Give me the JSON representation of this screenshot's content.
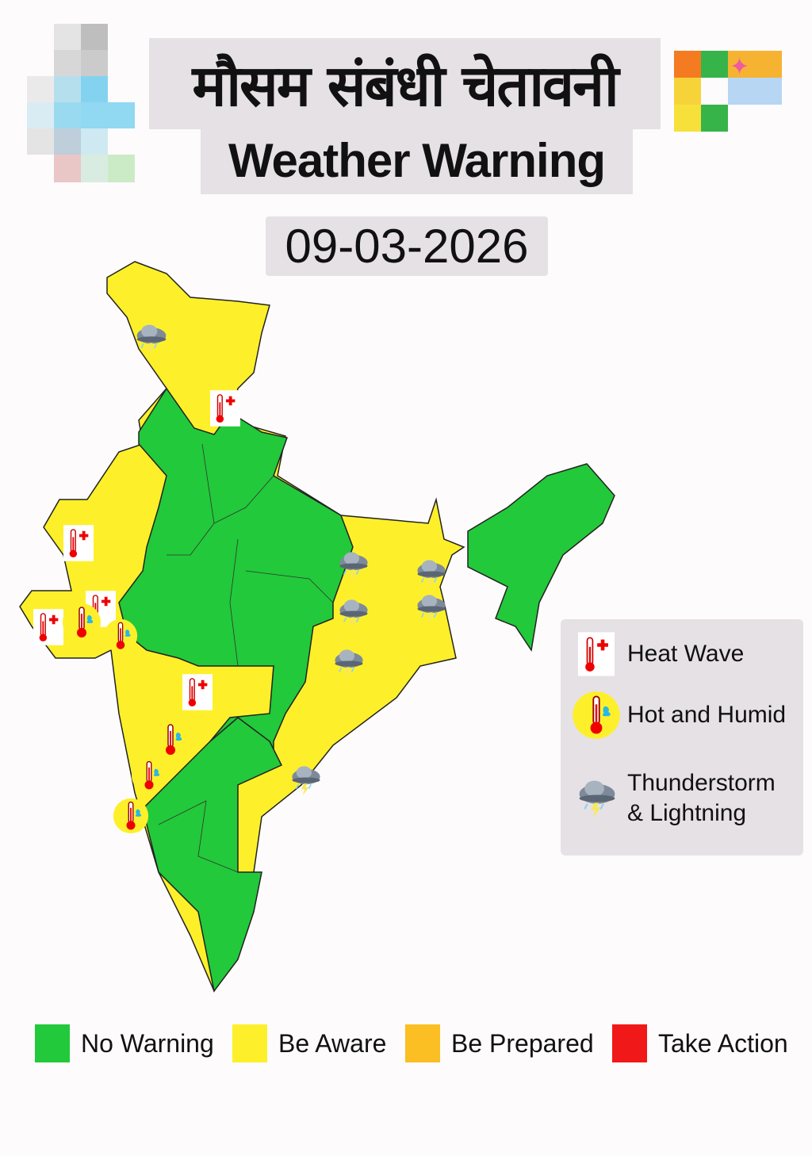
{
  "header": {
    "title_hindi": "मौसम संबंधी चेतावनी",
    "title_english": "Weather Warning",
    "date": "09-03-2026"
  },
  "map": {
    "colors": {
      "no_warning": "#22c93a",
      "be_aware": "#fdf02a"
    },
    "icons": [
      "heat-wave-icon",
      "hot-humid-icon",
      "thunderstorm-icon"
    ]
  },
  "icon_legend": {
    "items": [
      {
        "label": "Heat Wave",
        "icon": "heat-wave-icon"
      },
      {
        "label": "Hot and Humid",
        "icon": "hot-humid-icon"
      },
      {
        "label_line1": "Thunderstorm",
        "label_line2": "& Lightning",
        "icon": "thunderstorm-icon"
      }
    ]
  },
  "color_scale": {
    "items": [
      {
        "label": "No Warning",
        "color": "#22c93a"
      },
      {
        "label": "Be Aware",
        "color": "#fdf02a"
      },
      {
        "label": "Be Prepared",
        "color": "#fbbf24"
      },
      {
        "label": "Take Action",
        "color": "#f01818"
      }
    ]
  }
}
